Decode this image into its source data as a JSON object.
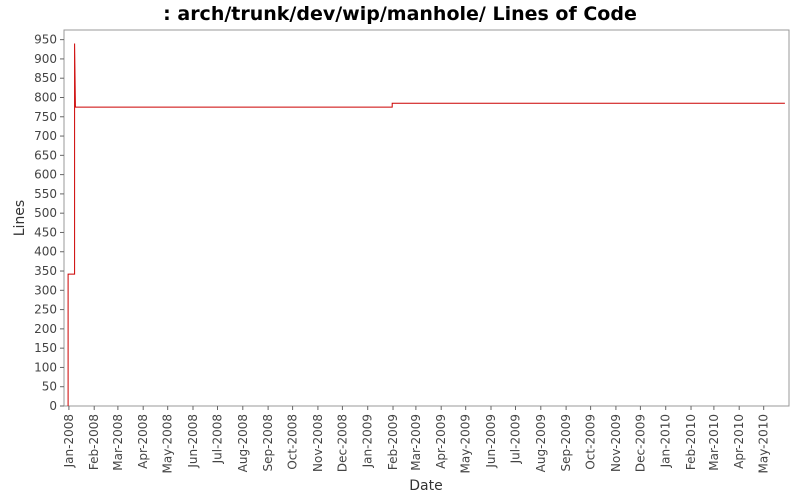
{
  "chart_data": {
    "type": "line",
    "title": ": arch/trunk/dev/wip/manhole/ Lines of Code",
    "xlabel": "Date",
    "ylabel": "Lines",
    "ylim": [
      0,
      975
    ],
    "xlim": [
      "2007-12-26",
      "2010-06-01"
    ],
    "grid": false,
    "line_color": "#cc0000",
    "y_ticks": [
      0,
      50,
      100,
      150,
      200,
      250,
      300,
      350,
      400,
      450,
      500,
      550,
      600,
      650,
      700,
      750,
      800,
      850,
      900,
      950
    ],
    "x_ticks": [
      {
        "label": "Jan-2008",
        "date": "2008-01-01"
      },
      {
        "label": "Feb-2008",
        "date": "2008-02-01"
      },
      {
        "label": "Mar-2008",
        "date": "2008-03-01"
      },
      {
        "label": "Apr-2008",
        "date": "2008-04-01"
      },
      {
        "label": "May-2008",
        "date": "2008-05-01"
      },
      {
        "label": "Jun-2008",
        "date": "2008-06-01"
      },
      {
        "label": "Jul-2008",
        "date": "2008-07-01"
      },
      {
        "label": "Aug-2008",
        "date": "2008-08-01"
      },
      {
        "label": "Sep-2008",
        "date": "2008-09-01"
      },
      {
        "label": "Oct-2008",
        "date": "2008-10-01"
      },
      {
        "label": "Nov-2008",
        "date": "2008-11-01"
      },
      {
        "label": "Dec-2008",
        "date": "2008-12-01"
      },
      {
        "label": "Jan-2009",
        "date": "2009-01-01"
      },
      {
        "label": "Feb-2009",
        "date": "2009-02-01"
      },
      {
        "label": "Mar-2009",
        "date": "2009-03-01"
      },
      {
        "label": "Apr-2009",
        "date": "2009-04-01"
      },
      {
        "label": "May-2009",
        "date": "2009-05-01"
      },
      {
        "label": "Jun-2009",
        "date": "2009-06-01"
      },
      {
        "label": "Jul-2009",
        "date": "2009-07-01"
      },
      {
        "label": "Aug-2009",
        "date": "2009-08-01"
      },
      {
        "label": "Sep-2009",
        "date": "2009-09-01"
      },
      {
        "label": "Oct-2009",
        "date": "2009-10-01"
      },
      {
        "label": "Nov-2009",
        "date": "2009-11-01"
      },
      {
        "label": "Dec-2009",
        "date": "2009-12-01"
      },
      {
        "label": "Jan-2010",
        "date": "2010-01-01"
      },
      {
        "label": "Feb-2010",
        "date": "2010-02-01"
      },
      {
        "label": "Mar-2010",
        "date": "2010-03-01"
      },
      {
        "label": "Apr-2010",
        "date": "2010-04-01"
      },
      {
        "label": "May-2010",
        "date": "2010-05-01"
      }
    ],
    "series": [
      {
        "step": true,
        "points": [
          {
            "date": "2007-12-31",
            "value": 0
          },
          {
            "date": "2007-12-31",
            "value": 342
          },
          {
            "date": "2008-01-08",
            "value": 342
          },
          {
            "date": "2008-01-08",
            "value": 940
          },
          {
            "date": "2008-01-09",
            "value": 775
          },
          {
            "date": "2009-01-31",
            "value": 775
          },
          {
            "date": "2009-01-31",
            "value": 785
          },
          {
            "date": "2010-05-27",
            "value": 785
          }
        ]
      }
    ]
  }
}
